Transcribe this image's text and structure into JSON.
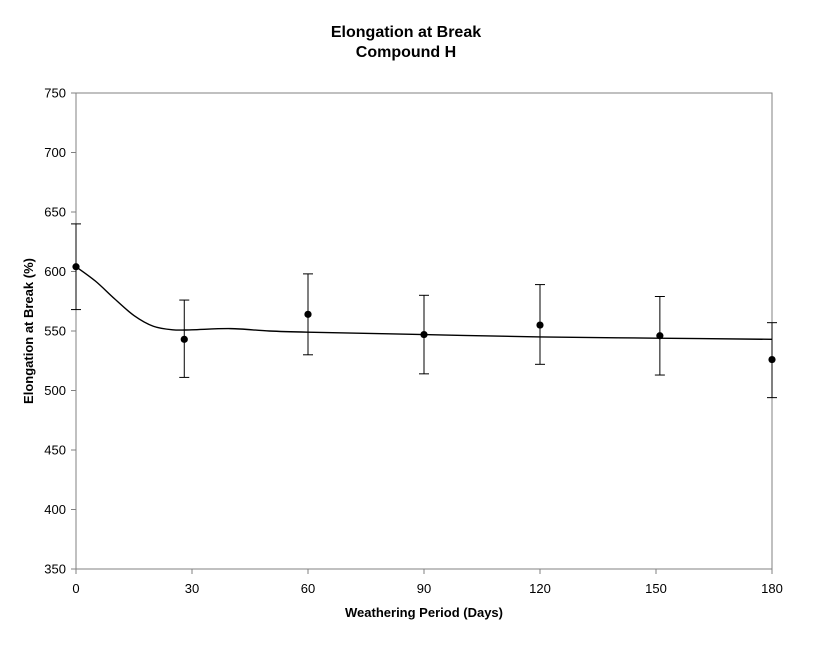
{
  "chart_data": {
    "type": "scatter",
    "title": "Elongation at Break",
    "subtitle": "Compound H",
    "xlabel": "Weathering Period (Days)",
    "ylabel": "Elongation at Break (%)",
    "xlim": [
      0,
      180
    ],
    "ylim": [
      350,
      750
    ],
    "xticks": [
      "0",
      "30",
      "60",
      "90",
      "120",
      "150",
      "180"
    ],
    "yticks": [
      "350",
      "400",
      "450",
      "500",
      "550",
      "600",
      "650",
      "700",
      "750"
    ],
    "grid": false,
    "legend": "none",
    "series": [
      {
        "points": [
          {
            "x": 0,
            "y": 604,
            "low": 568,
            "high": 640
          },
          {
            "x": 28,
            "y": 543,
            "low": 511,
            "high": 576
          },
          {
            "x": 60,
            "y": 564,
            "low": 530,
            "high": 598
          },
          {
            "x": 90,
            "y": 547,
            "low": 514,
            "high": 580
          },
          {
            "x": 120,
            "y": 555,
            "low": 522,
            "high": 589
          },
          {
            "x": 151,
            "y": 546,
            "low": 513,
            "high": 579
          },
          {
            "x": 180,
            "y": 526,
            "low": 494,
            "high": 557
          }
        ],
        "trend": [
          {
            "x": 0,
            "y": 604
          },
          {
            "x": 5,
            "y": 592
          },
          {
            "x": 10,
            "y": 577
          },
          {
            "x": 15,
            "y": 563
          },
          {
            "x": 20,
            "y": 554
          },
          {
            "x": 25,
            "y": 551
          },
          {
            "x": 30,
            "y": 551
          },
          {
            "x": 40,
            "y": 552
          },
          {
            "x": 50,
            "y": 550
          },
          {
            "x": 60,
            "y": 549
          },
          {
            "x": 90,
            "y": 547
          },
          {
            "x": 120,
            "y": 545
          },
          {
            "x": 150,
            "y": 544
          },
          {
            "x": 180,
            "y": 543
          }
        ]
      }
    ],
    "colors": {
      "marker": "#000000",
      "line": "#000000",
      "axis": "#808080"
    }
  }
}
